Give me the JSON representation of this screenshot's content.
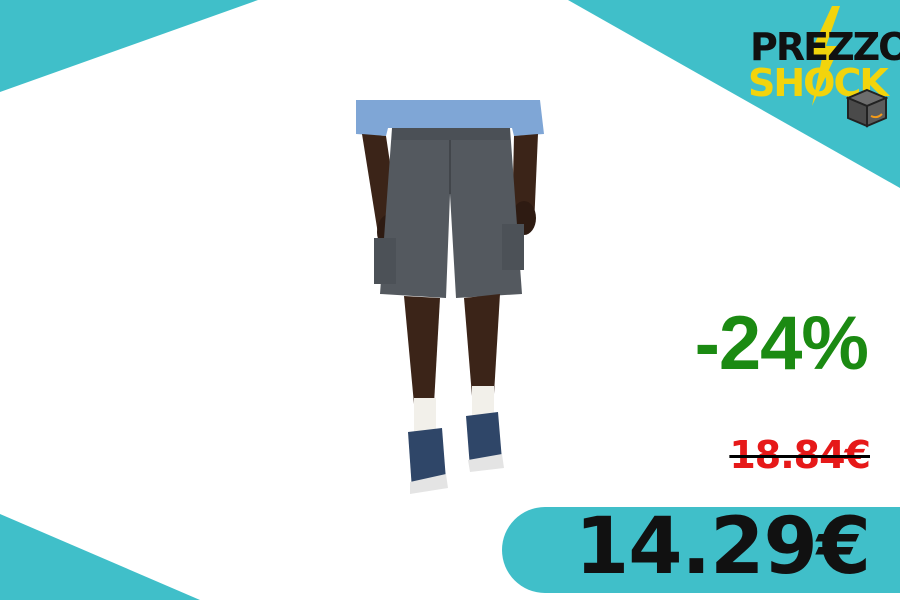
{
  "logo": {
    "line1": "PREZZO",
    "line2": "SHOCK"
  },
  "product": {
    "image_alt": "grey cargo shorts worn with light blue shirt, white socks and blue sneakers"
  },
  "pricing": {
    "discount": "-24%",
    "old_price": "18.84€",
    "new_price": "14.29€"
  },
  "colors": {
    "accent": "#40bfc9",
    "discount": "#1b8a12",
    "old_price": "#e61919",
    "logo_yellow": "#f2d40c"
  }
}
